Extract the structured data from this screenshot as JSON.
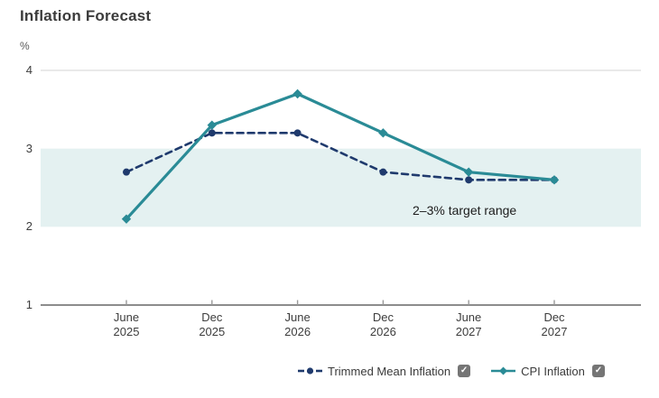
{
  "title": "Inflation Forecast",
  "icons": {
    "checkbox_check": "✓"
  },
  "colors": {
    "band": "#e4f1f1",
    "gridline": "#dcdcdc",
    "axis": "#8c8c8c",
    "tick": "#999999",
    "checkbox": "#757575"
  },
  "chart_data": {
    "type": "line",
    "title": "Inflation Forecast",
    "unit_label": "%",
    "categories": [
      "June 2025",
      "Dec 2025",
      "June 2026",
      "Dec 2026",
      "June 2027",
      "Dec 2027"
    ],
    "series": [
      {
        "name": "Trimmed Mean Inflation",
        "values": [
          2.7,
          3.2,
          3.2,
          2.7,
          2.6,
          2.6
        ],
        "color": "#1f3a6d",
        "line_style": "dashed",
        "marker": "circle",
        "checkbox_checked": true
      },
      {
        "name": "CPI Inflation",
        "values": [
          2.1,
          3.3,
          3.7,
          3.2,
          2.7,
          2.6
        ],
        "color": "#2a8b96",
        "line_style": "solid",
        "marker": "diamond",
        "checkbox_checked": true
      }
    ],
    "ylim": [
      1,
      4
    ],
    "yticks": [
      4,
      3,
      2,
      1
    ],
    "band": {
      "from": 2,
      "to": 3,
      "label": "2–3% target range",
      "color": "#e4f1f1"
    },
    "legend_position": "bottom",
    "grid": "minimal"
  }
}
